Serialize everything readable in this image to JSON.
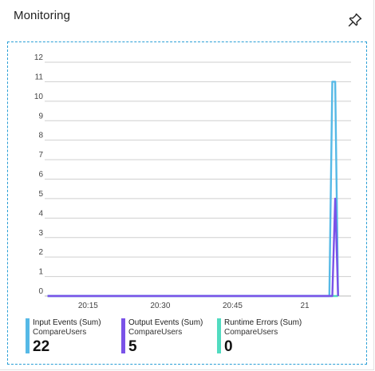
{
  "header": {
    "title": "Monitoring",
    "pin_icon": "pin-icon"
  },
  "colors": {
    "input_events": "#56b9e6",
    "output_events": "#7a52e8",
    "runtime_errors": "#52dbc0",
    "grid": "#cfcfcf",
    "tile_border": "#2a9fd6"
  },
  "legend": [
    {
      "name": "Input Events (Sum)",
      "sub": "CompareUsers",
      "value": "22"
    },
    {
      "name": "Output Events (Sum)",
      "sub": "CompareUsers",
      "value": "5"
    },
    {
      "name": "Runtime Errors (Sum)",
      "sub": "CompareUsers",
      "value": "0"
    }
  ],
  "chart_data": {
    "type": "line",
    "y_ticks": [
      "0",
      "1",
      "2",
      "3",
      "4",
      "5",
      "6",
      "7",
      "8",
      "9",
      "10",
      "11",
      "12"
    ],
    "x_ticks": [
      "20:15",
      "20:30",
      "20:45",
      "21"
    ],
    "ylim": [
      0,
      12
    ],
    "xlim_minutes": [
      20.1,
      21.16
    ],
    "x_tick_minutes": [
      20.25,
      20.5,
      20.75,
      21.0
    ],
    "grid": true,
    "series": [
      {
        "name": "Input Events (Sum)",
        "sub": "CompareUsers",
        "color": "#56b9e6",
        "x": [
          20.11,
          21.085,
          21.095,
          21.105,
          21.115
        ],
        "y": [
          0,
          0,
          11,
          11,
          0
        ]
      },
      {
        "name": "Output Events (Sum)",
        "sub": "CompareUsers",
        "color": "#7a52e8",
        "x": [
          20.11,
          21.095,
          21.105,
          21.115
        ],
        "y": [
          0,
          0,
          5,
          0
        ]
      },
      {
        "name": "Runtime Errors (Sum)",
        "sub": "CompareUsers",
        "color": "#52dbc0",
        "x": [
          20.11,
          21.115
        ],
        "y": [
          0,
          0
        ]
      }
    ]
  }
}
